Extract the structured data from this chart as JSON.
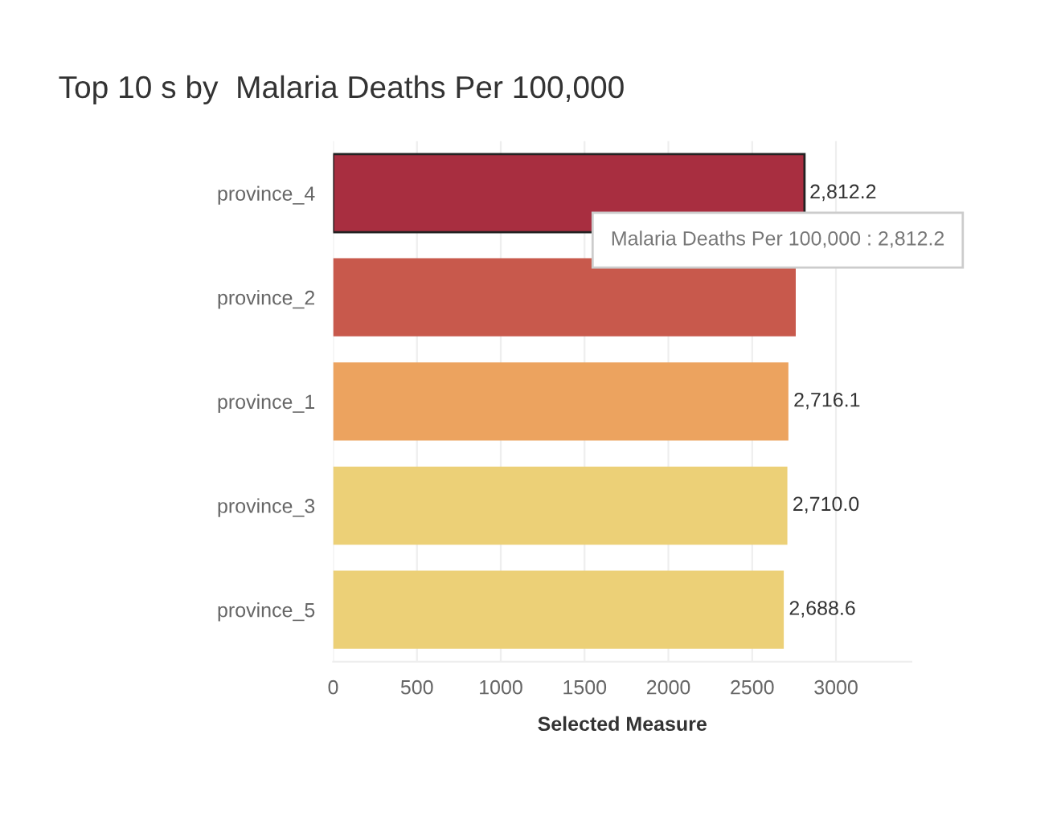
{
  "chart_data": {
    "type": "bar",
    "orientation": "horizontal",
    "title": "Top 10 s by  Malaria Deaths Per 100,000",
    "xlabel": "Selected Measure",
    "categories": [
      "province_4",
      "province_2",
      "province_1",
      "province_3",
      "province_5"
    ],
    "values": [
      2812.2,
      2760,
      2716.1,
      2710.0,
      2688.6
    ],
    "colors": [
      "#a82e40",
      "#c8594c",
      "#eca35f",
      "#ecd077",
      "#ecd077"
    ],
    "value_labels": [
      "2,812.2",
      null,
      "2,716.1",
      "2,710.0",
      "2,688.6"
    ],
    "xlim": [
      0,
      3450
    ],
    "xticks": [
      0,
      500,
      1000,
      1500,
      2000,
      2500,
      3000
    ],
    "grid": "x",
    "annotations": [
      "Malaria Deaths Per 100,000 : 2,812.2"
    ]
  }
}
